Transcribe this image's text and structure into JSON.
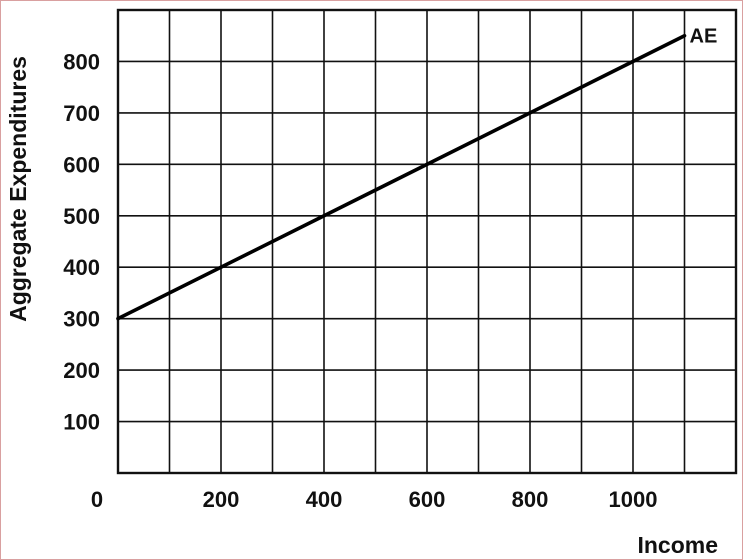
{
  "chart_data": {
    "type": "line",
    "xlabel": "Income",
    "ylabel": "Aggregate Expenditures",
    "xlim": [
      0,
      1200
    ],
    "ylim": [
      0,
      900
    ],
    "x_tick_values": [
      0,
      200,
      400,
      600,
      800,
      1000
    ],
    "x_tick_labels": [
      "0",
      "200",
      "400",
      "600",
      "800",
      "1000"
    ],
    "y_tick_values": [
      100,
      200,
      300,
      400,
      500,
      600,
      700,
      800
    ],
    "y_tick_labels": [
      "100",
      "200",
      "300",
      "400",
      "500",
      "600",
      "700",
      "800"
    ],
    "x_grid_step": 100,
    "y_grid_step": 100,
    "grid": true,
    "series": [
      {
        "name": "AE",
        "x": [
          0,
          1100
        ],
        "y": [
          300,
          850
        ],
        "color": "#000000"
      }
    ]
  }
}
